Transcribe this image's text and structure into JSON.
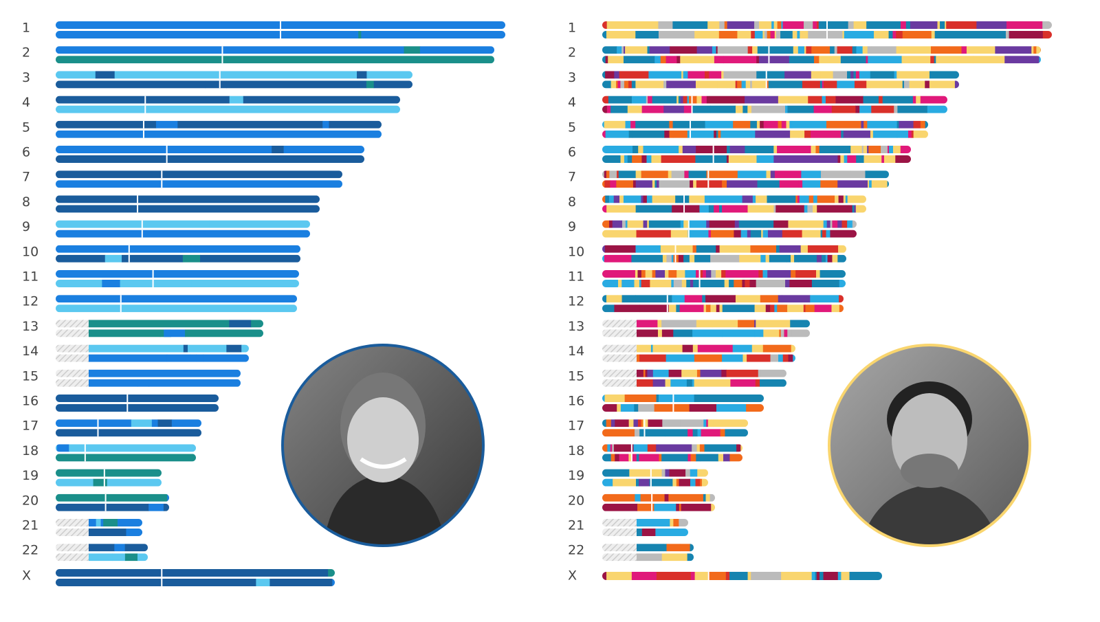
{
  "left_panel": {
    "chromosomes": [
      "1",
      "2",
      "3",
      "4",
      "5",
      "6",
      "7",
      "8",
      "9",
      "10",
      "11",
      "12",
      "13",
      "14",
      "15",
      "16",
      "17",
      "18",
      "19",
      "20",
      "21",
      "22",
      "X"
    ]
  },
  "right_panel": {
    "chromosomes": [
      "1",
      "2",
      "3",
      "4",
      "5",
      "6",
      "7",
      "8",
      "9",
      "10",
      "11",
      "12",
      "13",
      "14",
      "15",
      "16",
      "17",
      "18",
      "19",
      "20",
      "21",
      "22",
      "X"
    ]
  }
}
